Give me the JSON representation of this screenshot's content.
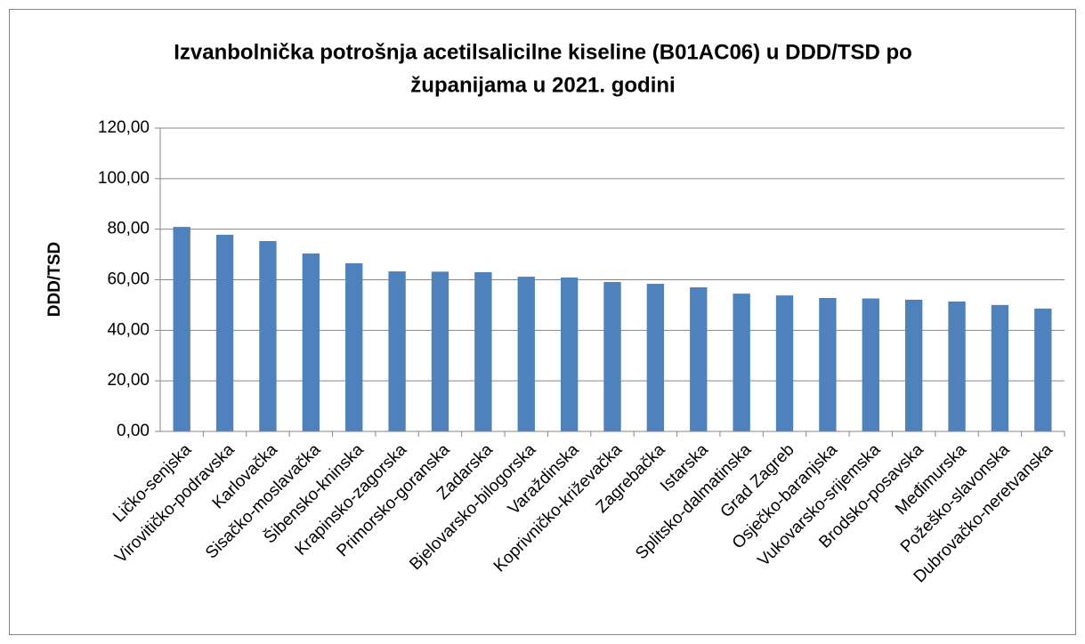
{
  "chart_data": {
    "type": "bar",
    "title": [
      "Izvanbolnička potrošnja acetilsalicilne kiseline (B01AC06) u DDD/TSD po",
      "županijama u 2021. godini"
    ],
    "y_label": "DDD/TSD",
    "categories": [
      "Ličko-senjska",
      "Virovitičko-podravska",
      "Karlovačka",
      "Sisačko-moslavačka",
      "Šibensko-kninska",
      "Krapinsko-zagorska",
      "Primorsko-goranska",
      "Zadarska",
      "Bjelovarsko-bilogorska",
      "Varaždinska",
      "Koprivničko-križevačka",
      "Zagrebačka",
      "Istarska",
      "Splitsko-dalmatinska",
      "Grad Zagreb",
      "Osječko-baranjska",
      "Vukovarsko-srijemska",
      "Brodsko-posavska",
      "Međimurska",
      "Požeško-slavonska",
      "Dubrovačko-neretvanska"
    ],
    "values": [
      80.9,
      77.8,
      75.3,
      70.4,
      66.5,
      63.3,
      63.2,
      63.0,
      61.2,
      60.9,
      59.1,
      58.4,
      57.0,
      54.5,
      53.8,
      52.8,
      52.6,
      52.1,
      51.4,
      50.0,
      48.6
    ],
    "color": "#4f81bd",
    "ylim": [
      0,
      120
    ],
    "yticks": [
      {
        "value": 0,
        "label": "0,00"
      },
      {
        "value": 20,
        "label": "20,00"
      },
      {
        "value": 40,
        "label": "40,00"
      },
      {
        "value": 60,
        "label": "60,00"
      },
      {
        "value": 80,
        "label": "80,00"
      },
      {
        "value": 100,
        "label": "100,00"
      },
      {
        "value": 120,
        "label": "120,00"
      }
    ],
    "grid": true
  }
}
